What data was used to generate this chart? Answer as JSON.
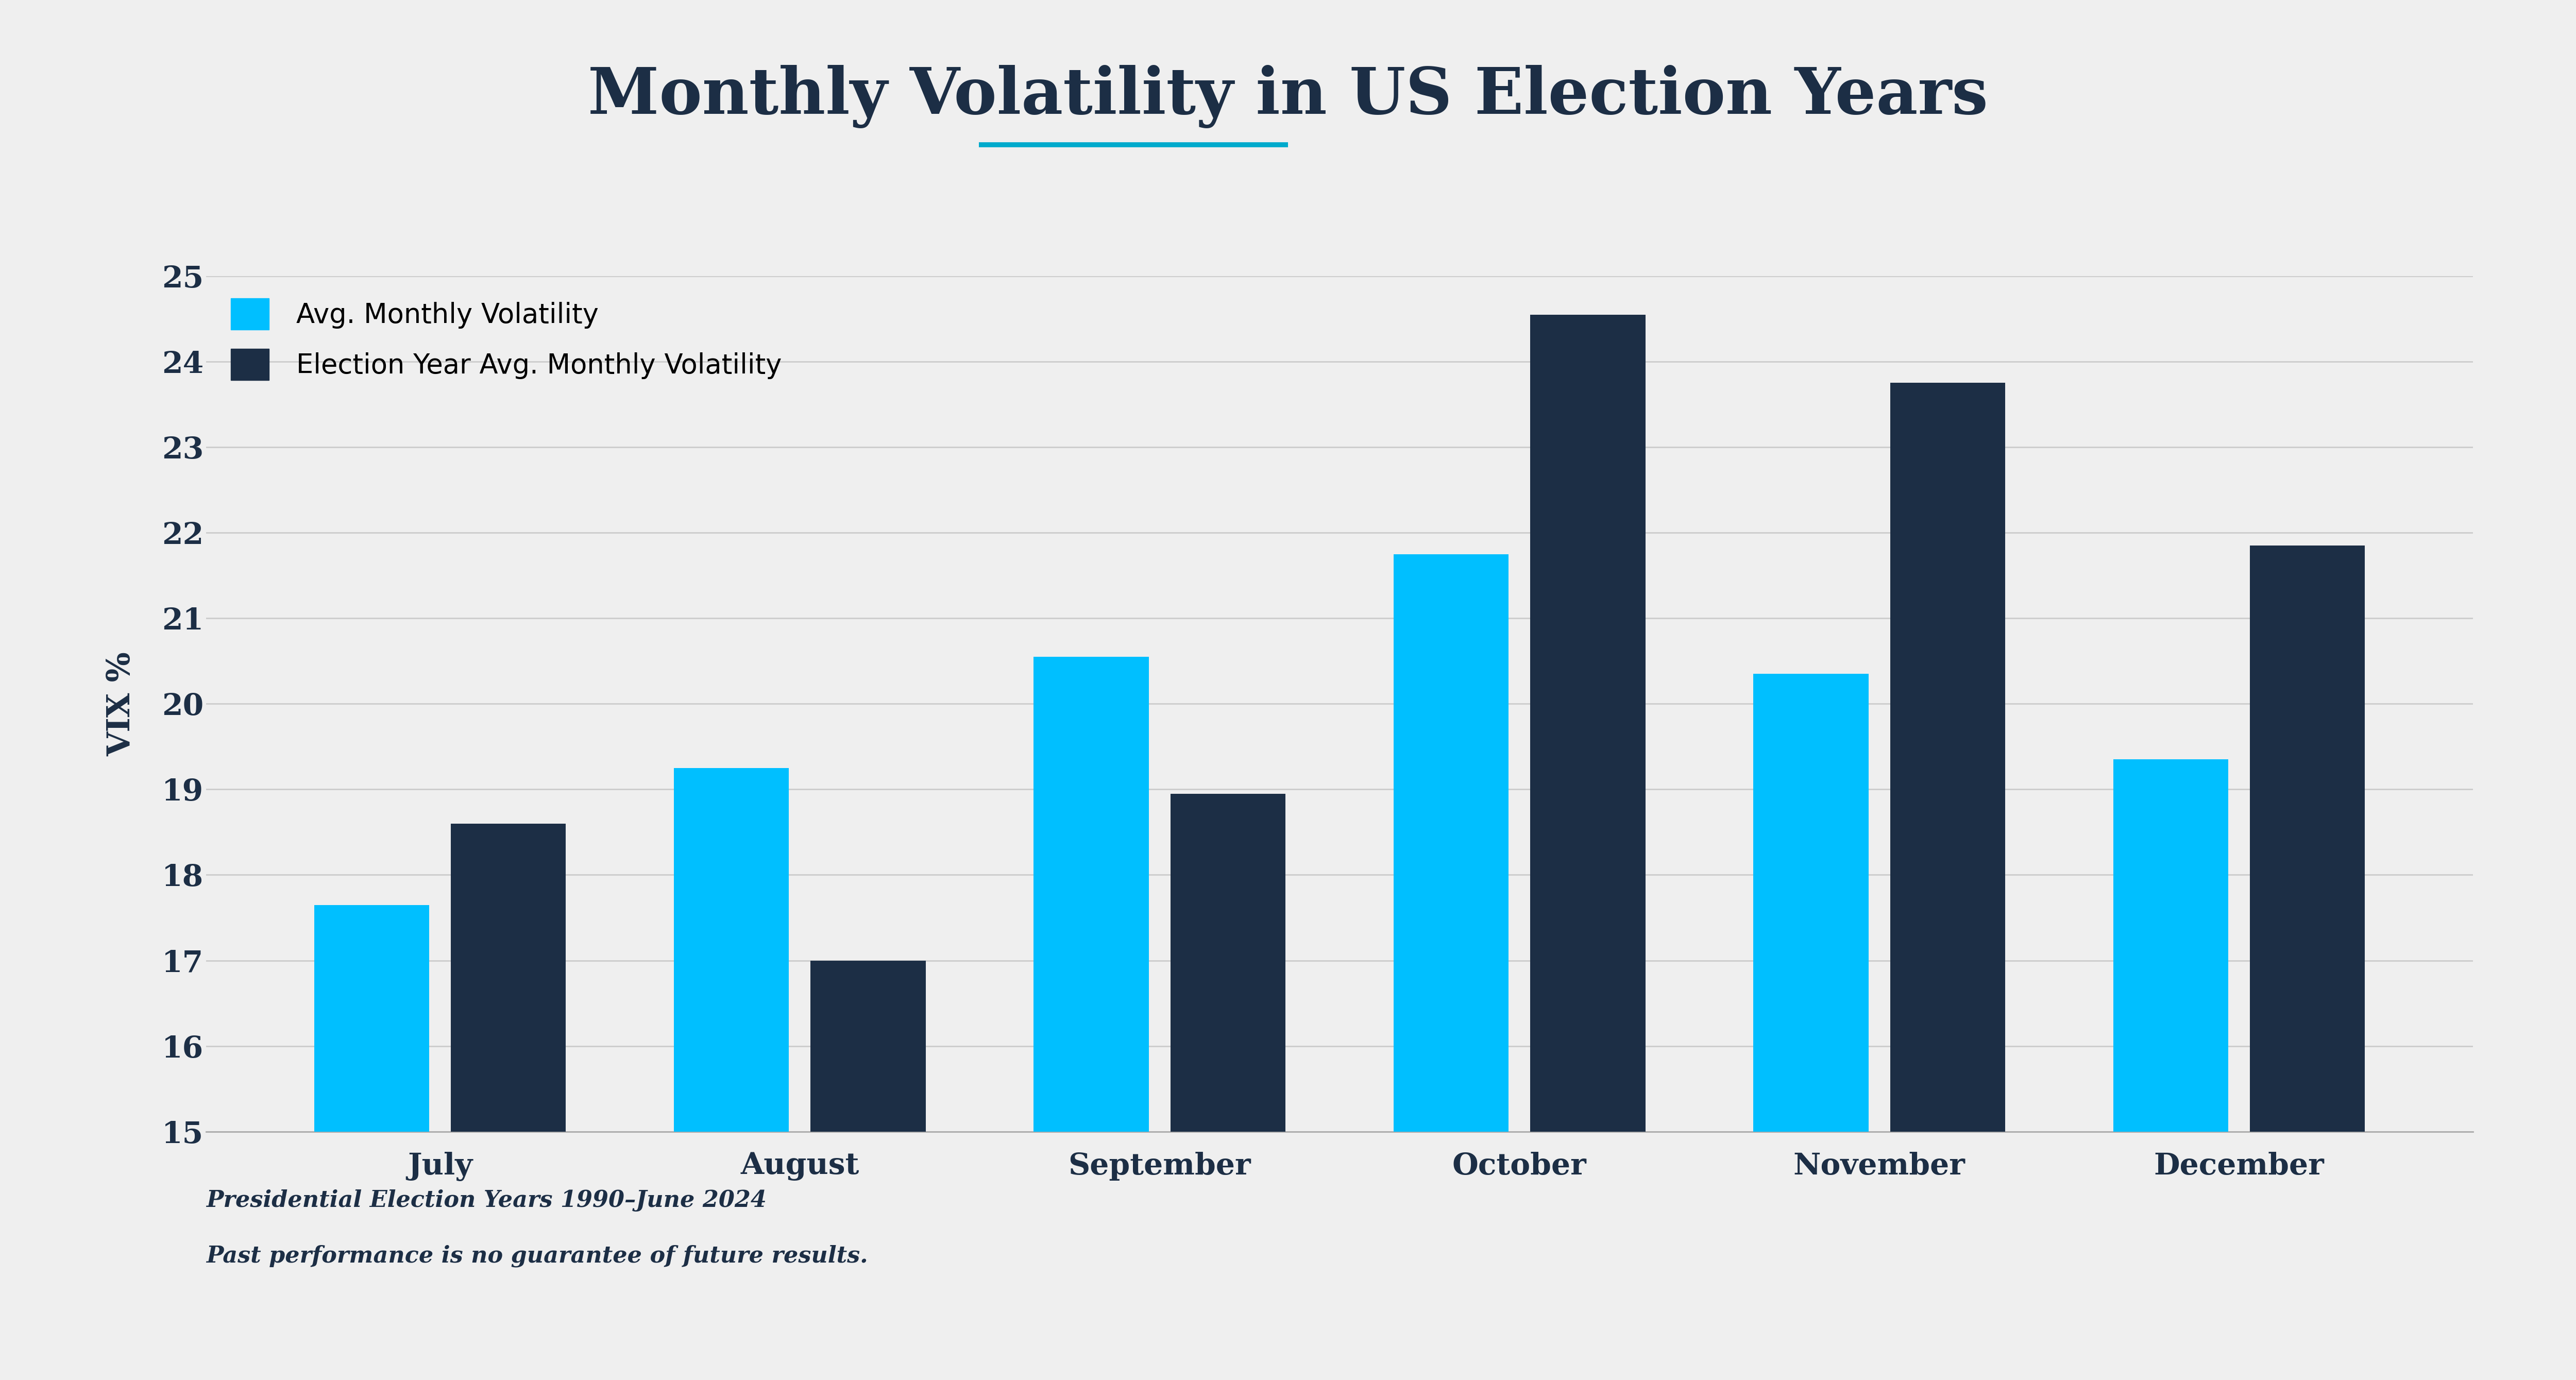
{
  "title": "Monthly Volatility in US Election Years",
  "title_underline_color": "#00AACC",
  "ylabel": "VIX %",
  "background_color": "#efefef",
  "plot_bg_color": "#efefef",
  "categories": [
    "July",
    "August",
    "September",
    "October",
    "November",
    "December"
  ],
  "avg_monthly": [
    17.65,
    19.25,
    20.55,
    21.75,
    20.35,
    19.35
  ],
  "election_year_avg": [
    18.6,
    17.0,
    18.95,
    24.55,
    23.75,
    21.85
  ],
  "avg_color": "#00BFFF",
  "election_color": "#1C2E45",
  "ylim": [
    15,
    25
  ],
  "yticks": [
    15,
    16,
    17,
    18,
    19,
    20,
    21,
    22,
    23,
    24,
    25
  ],
  "legend_label_avg": "Avg. Monthly Volatility",
  "legend_label_election": "Election Year Avg. Monthly Volatility",
  "footnote_line1": "Presidential Election Years 1990–June 2024",
  "footnote_line2": "Past performance is no guarantee of future results.",
  "bar_width": 0.32,
  "bar_gap": 0.06
}
